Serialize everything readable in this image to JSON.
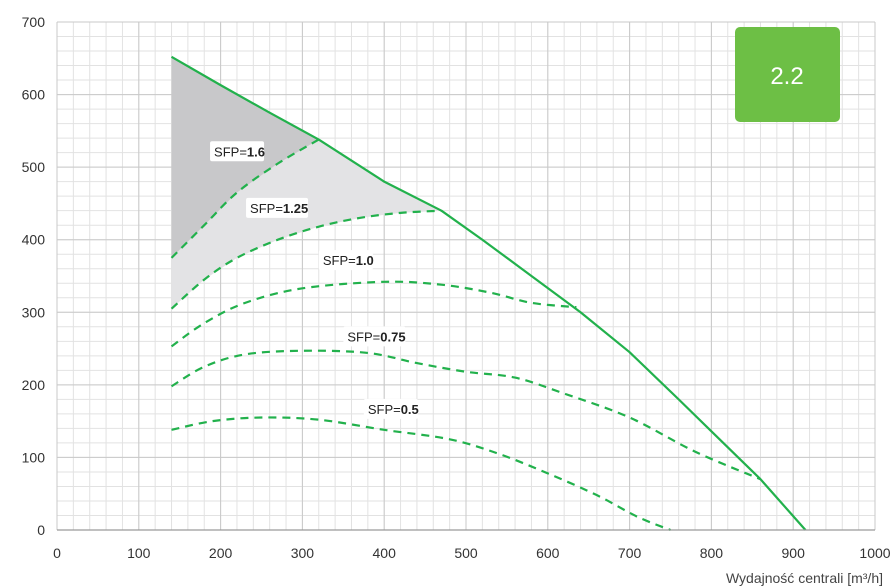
{
  "chart_data": {
    "type": "line",
    "xlabel": "Wydajność centrali [m³/h]",
    "ylabel": "",
    "xlim": [
      0,
      1000
    ],
    "ylim": [
      0,
      700
    ],
    "x_ticks": [
      0,
      100,
      200,
      300,
      400,
      500,
      600,
      700,
      800,
      900,
      1000
    ],
    "y_ticks": [
      0,
      100,
      200,
      300,
      400,
      500,
      600,
      700
    ],
    "grid": true,
    "badge": "2.2",
    "colors": {
      "curve": "#22b14c",
      "badge": "#6dbf45",
      "shade_dark": "#c8c8ca",
      "shade_light": "#e3e3e5",
      "grid_major": "#c9c9c9",
      "grid_minor": "#e2e2e2"
    },
    "max_curve": {
      "x": [
        140,
        200,
        260,
        320,
        400,
        470,
        520,
        580,
        640,
        700,
        760,
        810,
        860,
        915
      ],
      "y": [
        652,
        613,
        575,
        538,
        480,
        440,
        400,
        350,
        300,
        245,
        180,
        125,
        70,
        0
      ]
    },
    "sfp_curves": [
      {
        "label_prefix": "SFP=",
        "label_value": "1.6",
        "x": [
          140,
          180,
          220,
          270,
          320
        ],
        "y": [
          375,
          420,
          465,
          505,
          538
        ]
      },
      {
        "label_prefix": "SFP=",
        "label_value": "1.25",
        "x": [
          140,
          180,
          220,
          270,
          320,
          370,
          420,
          470
        ],
        "y": [
          305,
          345,
          375,
          400,
          418,
          430,
          437,
          440
        ]
      },
      {
        "label_prefix": "SFP=",
        "label_value": "1.0",
        "x": [
          140,
          180,
          230,
          300,
          400,
          470,
          530,
          580,
          635
        ],
        "y": [
          253,
          285,
          313,
          333,
          342,
          338,
          327,
          313,
          307
        ]
      },
      {
        "label_prefix": "SFP=",
        "label_value": "0.75",
        "x": [
          140,
          180,
          230,
          300,
          380,
          440,
          500,
          560,
          620,
          700,
          780,
          860
        ],
        "y": [
          198,
          225,
          242,
          247,
          244,
          230,
          218,
          210,
          188,
          155,
          108,
          70
        ]
      },
      {
        "label_prefix": "SFP=",
        "label_value": "0.5",
        "x": [
          140,
          190,
          250,
          320,
          400,
          480,
          540,
          600,
          660,
          710,
          750
        ],
        "y": [
          138,
          150,
          155,
          152,
          138,
          125,
          105,
          78,
          48,
          18,
          0
        ]
      }
    ]
  }
}
